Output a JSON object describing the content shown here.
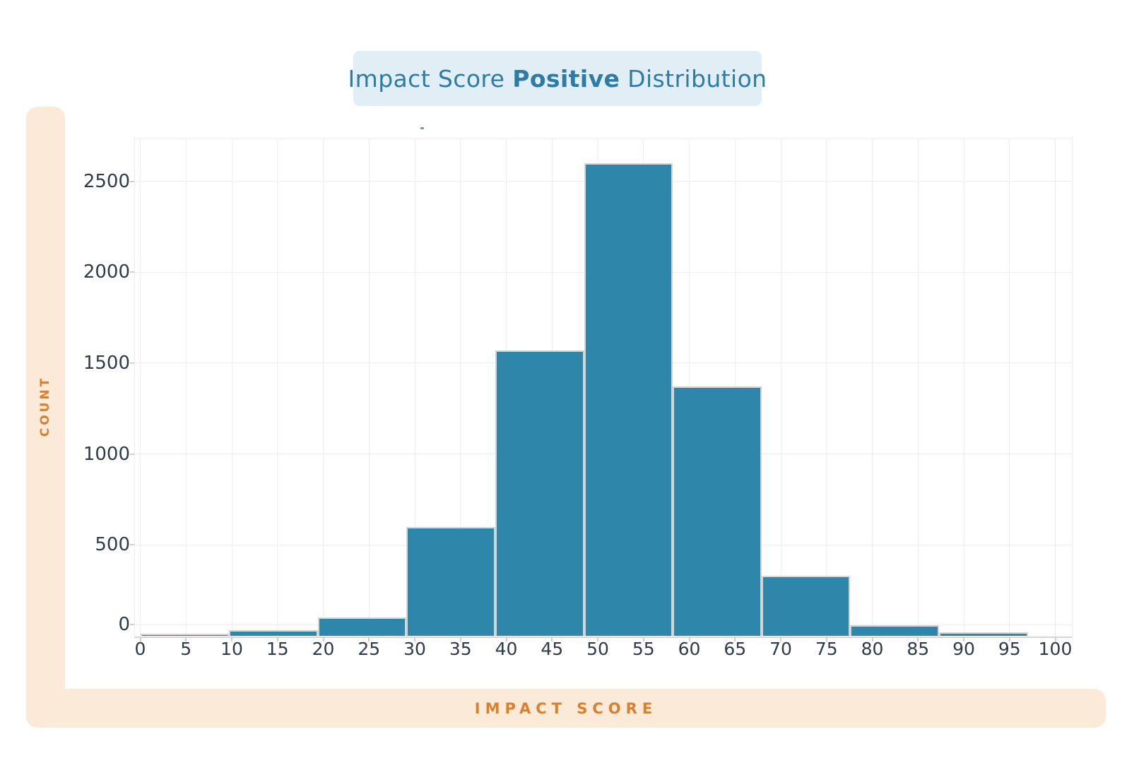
{
  "title": {
    "prefix": "Impact Score ",
    "bold": "Positive",
    "suffix": " Distribution"
  },
  "colors": {
    "bar": "#2e86ab",
    "bar-border": "#d4d4d4",
    "title-fg": "#2e7ca5",
    "title-bg": "#e1eef6",
    "band": "#fcead9",
    "orange": "#d97f2e",
    "tick": "#2f3b48",
    "grid": "#ededed"
  },
  "y_axis": {
    "label": "COUNT",
    "ticks": [
      0,
      500,
      1000,
      1500,
      2000,
      2500
    ]
  },
  "x_axis": {
    "label": "IMPACT SCORE",
    "ticks": [
      0,
      5,
      10,
      15,
      20,
      25,
      30,
      35,
      40,
      45,
      50,
      55,
      60,
      65,
      70,
      75,
      80,
      85,
      90,
      95,
      100
    ]
  },
  "chart_data": {
    "type": "histogram",
    "title": "Impact Score Positive Distribution",
    "xlabel": "IMPACT SCORE",
    "ylabel": "COUNT",
    "bin_edges": [
      0,
      9.7,
      19.4,
      29.1,
      38.8,
      48.5,
      58.2,
      67.9,
      77.6,
      87.3,
      97
    ],
    "counts": [
      10,
      30,
      100,
      600,
      1570,
      2600,
      1370,
      330,
      60,
      20
    ],
    "xlim": [
      0,
      103
    ],
    "ylim": [
      0,
      2730
    ],
    "grid": true,
    "legend": "none",
    "bar_color": "#2e86ab"
  }
}
